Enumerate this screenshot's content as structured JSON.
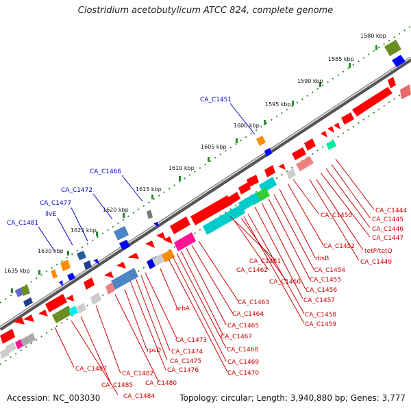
{
  "title": "Clostridium acetobutylicum ATCC 824, complete genome",
  "accession_text": "Accession: NC_003030",
  "summary_text": "Topology: circular; Length: 3,940,880 bp; Genes: 3,777",
  "scale_labels": [
    "1580 kbp",
    "1585 kbp",
    "1590 kbp",
    "1595 kbp",
    "1600 kbp",
    "1605 kbp",
    "1610 kbp",
    "1615 kbp",
    "1620 kbp",
    "1625 kbp",
    "1630 kbp",
    "1635 kbp"
  ],
  "blue_labels": [
    "CA_C1451",
    "CA_C1466",
    "CA_C1472",
    "CA_C1477",
    "ilvE",
    "CA_C1481"
  ],
  "red_labels": [
    "CA_C1444",
    "CA_C1445",
    "CA_C1446",
    "CA_C1447",
    "CA_C1450",
    "tetP/tetQ",
    "CA_C1449",
    "CA_C1452",
    "rbsB",
    "CA_C1461",
    "CA_C1454",
    "CA_C1455",
    "CA_C1462",
    "CA_C1460",
    "CA_C1456",
    "CA_C1457",
    "CA_C1463",
    "arbA",
    "CA_C1464",
    "CA_C1458",
    "CA_C1459",
    "CA_C1465",
    "CA_C1467",
    "CA_C1473",
    "CA_C1468",
    "rpsD",
    "CA_C1474",
    "CA_C1469",
    "CA_C1475",
    "CA_C1476",
    "CA_C1470",
    "CA_C1487",
    "CA_C1482",
    "CA_C1480",
    "CA_C1485",
    "CA_C1484"
  ],
  "colors": {
    "forward_gene": "#ff0000",
    "backbone": "#777777",
    "label_blue": "#0000cc",
    "label_red": "#cc0000",
    "tick": "#2a8a2a"
  }
}
